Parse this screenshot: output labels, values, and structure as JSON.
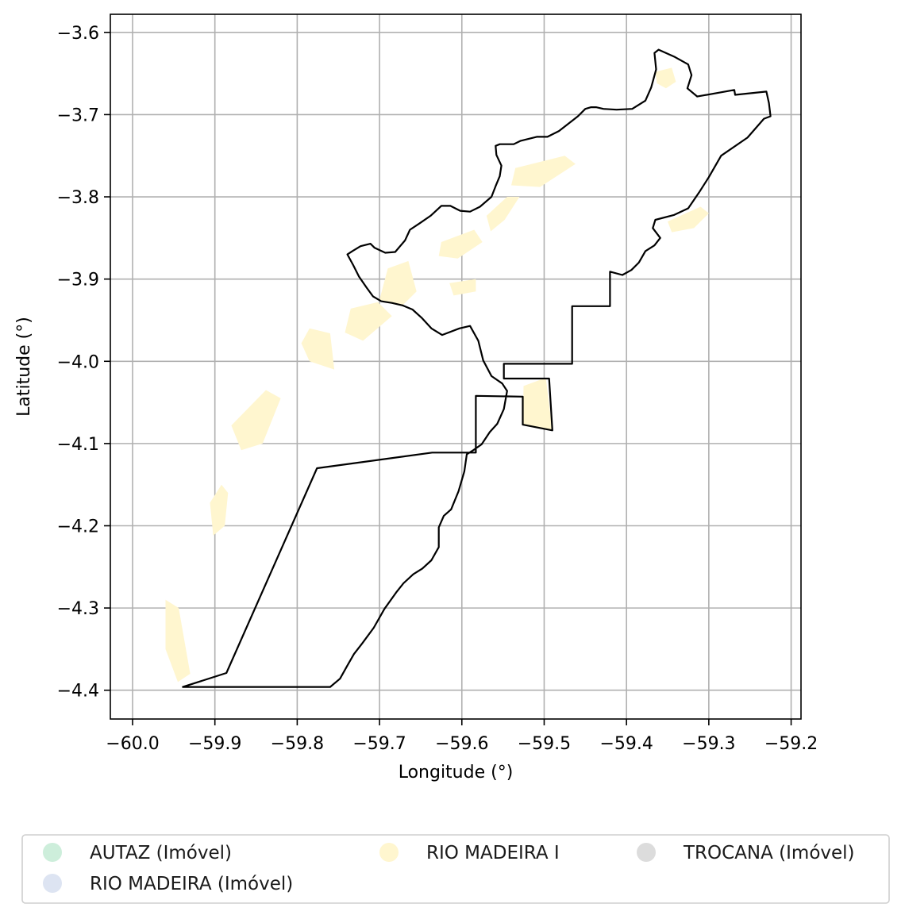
{
  "chart_data": {
    "type": "map",
    "xlabel": "Longitude (°)",
    "ylabel": "Latitude (°)",
    "xlim": [
      -60.027,
      -59.188
    ],
    "ylim": [
      -4.435,
      -3.578
    ],
    "grid": true,
    "x_ticks": [
      {
        "value": -60.0,
        "label": "−60.0"
      },
      {
        "value": -59.9,
        "label": "−59.9"
      },
      {
        "value": -59.8,
        "label": "−59.8"
      },
      {
        "value": -59.7,
        "label": "−59.7"
      },
      {
        "value": -59.6,
        "label": "−59.6"
      },
      {
        "value": -59.5,
        "label": "−59.5"
      },
      {
        "value": -59.4,
        "label": "−59.4"
      },
      {
        "value": -59.3,
        "label": "−59.3"
      },
      {
        "value": -59.2,
        "label": "−59.2"
      }
    ],
    "y_ticks": [
      {
        "value": -3.6,
        "label": "−3.6"
      },
      {
        "value": -3.7,
        "label": "−3.7"
      },
      {
        "value": -3.8,
        "label": "−3.8"
      },
      {
        "value": -3.9,
        "label": "−3.9"
      },
      {
        "value": -4.0,
        "label": "−4.0"
      },
      {
        "value": -4.1,
        "label": "−4.1"
      },
      {
        "value": -4.2,
        "label": "−4.2"
      },
      {
        "value": -4.3,
        "label": "−4.3"
      },
      {
        "value": -4.4,
        "label": "−4.4"
      }
    ],
    "legend": {
      "placement": "bottom",
      "columns": 3,
      "entries": [
        {
          "label": "AUTAZ (Imóvel)",
          "color": "#cdeedb"
        },
        {
          "label": "RIO MADEIRA (Imóvel)",
          "color": "#dde4f2"
        },
        {
          "label": "RIO MADEIRA I",
          "color": "#fff6cf"
        },
        {
          "label": "TROCANA (Imóvel)",
          "color": "#dcdcdc"
        }
      ]
    },
    "boundary": [
      [
        -59.939,
        -4.396
      ],
      [
        -59.886,
        -4.379
      ],
      [
        -59.776,
        -4.13
      ],
      [
        -59.636,
        -4.111
      ],
      [
        -59.583,
        -4.111
      ],
      [
        -59.583,
        -4.042
      ],
      [
        -59.526,
        -4.043
      ],
      [
        -59.526,
        -4.077
      ],
      [
        -59.49,
        -4.084
      ],
      [
        -59.494,
        -4.021
      ],
      [
        -59.549,
        -4.021
      ],
      [
        -59.549,
        -4.003
      ],
      [
        -59.466,
        -4.003
      ],
      [
        -59.466,
        -3.933
      ],
      [
        -59.42,
        -3.933
      ],
      [
        -59.42,
        -3.891
      ],
      [
        -59.405,
        -3.895
      ],
      [
        -59.394,
        -3.889
      ],
      [
        -59.385,
        -3.88
      ],
      [
        -59.377,
        -3.866
      ],
      [
        -59.366,
        -3.859
      ],
      [
        -59.359,
        -3.85
      ],
      [
        -59.368,
        -3.838
      ],
      [
        -59.365,
        -3.828
      ],
      [
        -59.342,
        -3.822
      ],
      [
        -59.325,
        -3.814
      ],
      [
        -59.312,
        -3.795
      ],
      [
        -59.3,
        -3.776
      ],
      [
        -59.285,
        -3.75
      ],
      [
        -59.253,
        -3.728
      ],
      [
        -59.233,
        -3.705
      ],
      [
        -59.225,
        -3.702
      ],
      [
        -59.227,
        -3.686
      ],
      [
        -59.23,
        -3.672
      ],
      [
        -59.268,
        -3.676
      ],
      [
        -59.269,
        -3.67
      ],
      [
        -59.314,
        -3.678
      ],
      [
        -59.326,
        -3.668
      ],
      [
        -59.321,
        -3.652
      ],
      [
        -59.325,
        -3.639
      ],
      [
        -59.341,
        -3.63
      ],
      [
        -59.361,
        -3.621
      ],
      [
        -59.366,
        -3.625
      ],
      [
        -59.364,
        -3.645
      ],
      [
        -59.37,
        -3.667
      ],
      [
        -59.377,
        -3.683
      ],
      [
        -59.393,
        -3.693
      ],
      [
        -59.412,
        -3.694
      ],
      [
        -59.428,
        -3.693
      ],
      [
        -59.437,
        -3.691
      ],
      [
        -59.443,
        -3.691
      ],
      [
        -59.45,
        -3.693
      ],
      [
        -59.459,
        -3.702
      ],
      [
        -59.482,
        -3.72
      ],
      [
        -59.496,
        -3.727
      ],
      [
        -59.509,
        -3.727
      ],
      [
        -59.529,
        -3.732
      ],
      [
        -59.537,
        -3.736
      ],
      [
        -59.554,
        -3.736
      ],
      [
        -59.559,
        -3.738
      ],
      [
        -59.558,
        -3.749
      ],
      [
        -59.552,
        -3.762
      ],
      [
        -59.554,
        -3.775
      ],
      [
        -59.559,
        -3.787
      ],
      [
        -59.564,
        -3.8
      ],
      [
        -59.578,
        -3.812
      ],
      [
        -59.59,
        -3.818
      ],
      [
        -59.602,
        -3.817
      ],
      [
        -59.614,
        -3.811
      ],
      [
        -59.625,
        -3.811
      ],
      [
        -59.638,
        -3.823
      ],
      [
        -59.651,
        -3.832
      ],
      [
        -59.663,
        -3.84
      ],
      [
        -59.669,
        -3.853
      ],
      [
        -59.681,
        -3.867
      ],
      [
        -59.693,
        -3.868
      ],
      [
        -59.706,
        -3.862
      ],
      [
        -59.711,
        -3.857
      ],
      [
        -59.723,
        -3.86
      ],
      [
        -59.733,
        -3.866
      ],
      [
        -59.739,
        -3.87
      ],
      [
        -59.732,
        -3.883
      ],
      [
        -59.725,
        -3.897
      ],
      [
        -59.716,
        -3.91
      ],
      [
        -59.708,
        -3.921
      ],
      [
        -59.698,
        -3.927
      ],
      [
        -59.685,
        -3.929
      ],
      [
        -59.672,
        -3.932
      ],
      [
        -59.66,
        -3.937
      ],
      [
        -59.649,
        -3.947
      ],
      [
        -59.637,
        -3.96
      ],
      [
        -59.624,
        -3.968
      ],
      [
        -59.603,
        -3.96
      ],
      [
        -59.59,
        -3.957
      ],
      [
        -59.58,
        -3.975
      ],
      [
        -59.574,
        -3.999
      ],
      [
        -59.564,
        -4.018
      ],
      [
        -59.551,
        -4.027
      ],
      [
        -59.545,
        -4.036
      ],
      [
        -59.549,
        -4.058
      ],
      [
        -59.557,
        -4.076
      ],
      [
        -59.566,
        -4.086
      ],
      [
        -59.576,
        -4.101
      ],
      [
        -59.586,
        -4.108
      ],
      [
        -59.594,
        -4.113
      ],
      [
        -59.597,
        -4.134
      ],
      [
        -59.604,
        -4.158
      ],
      [
        -59.613,
        -4.18
      ],
      [
        -59.622,
        -4.188
      ],
      [
        -59.628,
        -4.202
      ],
      [
        -59.628,
        -4.226
      ],
      [
        -59.637,
        -4.242
      ],
      [
        -59.648,
        -4.252
      ],
      [
        -59.659,
        -4.259
      ],
      [
        -59.671,
        -4.27
      ],
      [
        -59.679,
        -4.28
      ],
      [
        -59.694,
        -4.301
      ],
      [
        -59.707,
        -4.324
      ],
      [
        -59.721,
        -4.343
      ],
      [
        -59.731,
        -4.356
      ],
      [
        -59.739,
        -4.37
      ],
      [
        -59.748,
        -4.386
      ],
      [
        -59.76,
        -4.396
      ]
    ],
    "areas": [
      {
        "series": "RIO MADEIRA I",
        "points": [
          [
            -59.365,
            -3.648
          ],
          [
            -59.345,
            -3.643
          ],
          [
            -59.34,
            -3.66
          ],
          [
            -59.352,
            -3.668
          ],
          [
            -59.363,
            -3.662
          ]
        ]
      },
      {
        "series": "RIO MADEIRA I",
        "points": [
          [
            -59.535,
            -3.765
          ],
          [
            -59.475,
            -3.75
          ],
          [
            -59.462,
            -3.76
          ],
          [
            -59.505,
            -3.788
          ],
          [
            -59.54,
            -3.786
          ]
        ]
      },
      {
        "series": "RIO MADEIRA I",
        "points": [
          [
            -59.35,
            -3.83
          ],
          [
            -59.31,
            -3.812
          ],
          [
            -59.3,
            -3.82
          ],
          [
            -59.318,
            -3.838
          ],
          [
            -59.345,
            -3.843
          ]
        ]
      },
      {
        "series": "RIO MADEIRA I",
        "points": [
          [
            -59.57,
            -3.823
          ],
          [
            -59.545,
            -3.8
          ],
          [
            -59.53,
            -3.8
          ],
          [
            -59.548,
            -3.828
          ],
          [
            -59.565,
            -3.842
          ]
        ]
      },
      {
        "series": "RIO MADEIRA I",
        "points": [
          [
            -59.625,
            -3.855
          ],
          [
            -59.585,
            -3.84
          ],
          [
            -59.575,
            -3.855
          ],
          [
            -59.605,
            -3.875
          ],
          [
            -59.628,
            -3.872
          ]
        ]
      },
      {
        "series": "RIO MADEIRA I",
        "points": [
          [
            -59.69,
            -3.887
          ],
          [
            -59.665,
            -3.878
          ],
          [
            -59.655,
            -3.915
          ],
          [
            -59.672,
            -3.932
          ],
          [
            -59.7,
            -3.925
          ]
        ]
      },
      {
        "series": "RIO MADEIRA I",
        "points": [
          [
            -59.735,
            -3.936
          ],
          [
            -59.702,
            -3.928
          ],
          [
            -59.685,
            -3.945
          ],
          [
            -59.72,
            -3.975
          ],
          [
            -59.742,
            -3.965
          ]
        ]
      },
      {
        "series": "RIO MADEIRA I",
        "points": [
          [
            -59.785,
            -3.96
          ],
          [
            -59.76,
            -3.966
          ],
          [
            -59.755,
            -4.01
          ],
          [
            -59.785,
            -4.0
          ],
          [
            -59.795,
            -3.978
          ]
        ]
      },
      {
        "series": "RIO MADEIRA I",
        "points": [
          [
            -59.838,
            -4.035
          ],
          [
            -59.82,
            -4.045
          ],
          [
            -59.842,
            -4.1
          ],
          [
            -59.868,
            -4.108
          ],
          [
            -59.88,
            -4.078
          ]
        ]
      },
      {
        "series": "RIO MADEIRA I",
        "points": [
          [
            -59.892,
            -4.15
          ],
          [
            -59.884,
            -4.16
          ],
          [
            -59.888,
            -4.2
          ],
          [
            -59.902,
            -4.212
          ],
          [
            -59.906,
            -4.172
          ]
        ]
      },
      {
        "series": "RIO MADEIRA I",
        "points": [
          [
            -59.96,
            -4.29
          ],
          [
            -59.944,
            -4.3
          ],
          [
            -59.93,
            -4.38
          ],
          [
            -59.945,
            -4.39
          ],
          [
            -59.96,
            -4.35
          ]
        ]
      },
      {
        "series": "RIO MADEIRA I",
        "points": [
          [
            -59.615,
            -3.905
          ],
          [
            -59.583,
            -3.9
          ],
          [
            -59.583,
            -3.915
          ],
          [
            -59.61,
            -3.92
          ]
        ]
      },
      {
        "series": "RIO MADEIRA I",
        "points": [
          [
            -59.525,
            -4.03
          ],
          [
            -59.498,
            -4.02
          ],
          [
            -59.49,
            -4.084
          ],
          [
            -59.526,
            -4.077
          ]
        ]
      }
    ]
  }
}
